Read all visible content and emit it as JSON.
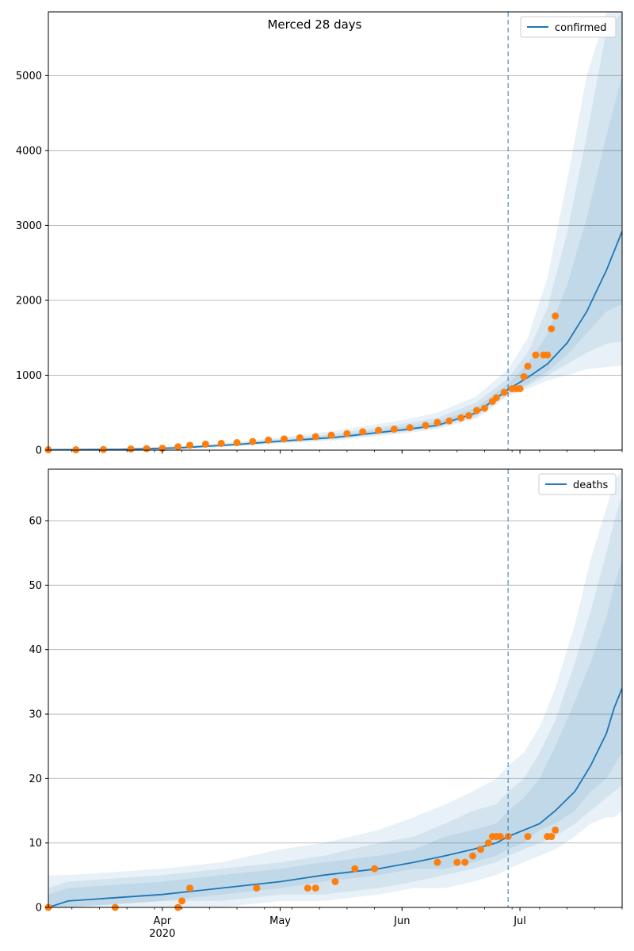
{
  "title": "Merced 28 days",
  "colors": {
    "model": "#1f77b4",
    "observed": "#ff7f0e",
    "band": "#1f77b4",
    "grid": "#b0b0b0",
    "forecast_line": "#1f77b4"
  },
  "x_axis": {
    "ticks": [
      {
        "date": "2020-04-01",
        "label": "Apr",
        "sublabel": "2020"
      },
      {
        "date": "2020-05-01",
        "label": "May",
        "sublabel": ""
      },
      {
        "date": "2020-06-01",
        "label": "Jun",
        "sublabel": ""
      },
      {
        "date": "2020-07-01",
        "label": "Jul",
        "sublabel": ""
      }
    ],
    "range": [
      "2020-03-03",
      "2020-07-27"
    ],
    "minor_ticks": "weekly"
  },
  "chart_data": [
    {
      "type": "line",
      "legend": "confirmed",
      "legend_position": "top-right",
      "grid": "horizontal",
      "ylim": [
        0,
        5850
      ],
      "yticks": [
        0,
        1000,
        2000,
        3000,
        4000,
        5000
      ],
      "forecast_start": "2020-06-28",
      "observed": {
        "x": [
          "2020-03-03",
          "2020-03-10",
          "2020-03-17",
          "2020-03-24",
          "2020-03-28",
          "2020-04-01",
          "2020-04-05",
          "2020-04-08",
          "2020-04-12",
          "2020-04-16",
          "2020-04-20",
          "2020-04-24",
          "2020-04-28",
          "2020-05-02",
          "2020-05-06",
          "2020-05-10",
          "2020-05-14",
          "2020-05-18",
          "2020-05-22",
          "2020-05-26",
          "2020-05-30",
          "2020-06-03",
          "2020-06-07",
          "2020-06-10",
          "2020-06-13",
          "2020-06-16",
          "2020-06-18",
          "2020-06-20",
          "2020-06-22",
          "2020-06-24",
          "2020-06-25",
          "2020-06-27",
          "2020-06-29",
          "2020-06-30",
          "2020-07-01",
          "2020-07-02",
          "2020-07-03",
          "2020-07-05",
          "2020-07-07",
          "2020-07-08",
          "2020-07-09",
          "2020-07-10"
        ],
        "y": [
          5,
          5,
          8,
          15,
          20,
          25,
          45,
          65,
          80,
          90,
          100,
          115,
          135,
          150,
          165,
          180,
          200,
          220,
          245,
          265,
          280,
          300,
          330,
          370,
          390,
          430,
          460,
          530,
          560,
          650,
          700,
          770,
          820,
          820,
          820,
          980,
          1120,
          1270,
          1270,
          1270,
          1620,
          1790
        ]
      },
      "model": {
        "x": [
          "2020-03-03",
          "2020-03-21",
          "2020-04-05",
          "2020-04-20",
          "2020-05-01",
          "2020-05-15",
          "2020-06-01",
          "2020-06-10",
          "2020-06-20",
          "2020-06-28",
          "2020-07-03",
          "2020-07-08",
          "2020-07-13",
          "2020-07-18",
          "2020-07-23",
          "2020-07-27"
        ],
        "y": [
          5,
          10,
          30,
          75,
          120,
          170,
          270,
          330,
          500,
          810,
          970,
          1150,
          1430,
          1850,
          2400,
          2920
        ]
      },
      "bands": [
        {
          "lower": [
            0,
            2,
            15,
            50,
            90,
            130,
            220,
            280,
            420,
            720,
            820,
            930,
            1000,
            1080,
            1110,
            1130
          ],
          "upper": [
            15,
            25,
            55,
            110,
            170,
            260,
            400,
            500,
            720,
            1080,
            1500,
            2300,
            3600,
            5000,
            5850,
            5850
          ]
        },
        {
          "lower": [
            1,
            5,
            20,
            60,
            100,
            145,
            240,
            300,
            450,
            750,
            860,
            1000,
            1150,
            1300,
            1420,
            1450
          ],
          "upper": [
            10,
            20,
            45,
            95,
            150,
            220,
            350,
            430,
            640,
            960,
            1300,
            1900,
            2900,
            4200,
            5600,
            5850
          ]
        },
        {
          "lower": [
            3,
            7,
            24,
            66,
            108,
            155,
            252,
            312,
            472,
            775,
            890,
            1050,
            1270,
            1560,
            1850,
            1950
          ],
          "upper": [
            8,
            15,
            38,
            86,
            135,
            195,
            310,
            380,
            570,
            890,
            1150,
            1550,
            2200,
            3100,
            4200,
            5000
          ]
        }
      ]
    },
    {
      "type": "line",
      "legend": "deaths",
      "legend_position": "top-right",
      "grid": "horizontal",
      "ylim": [
        0,
        68
      ],
      "yticks": [
        0,
        10,
        20,
        30,
        40,
        50,
        60
      ],
      "forecast_start": "2020-06-28",
      "observed": {
        "x": [
          "2020-03-03",
          "2020-03-20",
          "2020-04-05",
          "2020-04-06",
          "2020-04-08",
          "2020-04-25",
          "2020-05-08",
          "2020-05-10",
          "2020-05-15",
          "2020-05-20",
          "2020-05-25",
          "2020-06-10",
          "2020-06-15",
          "2020-06-17",
          "2020-06-19",
          "2020-06-21",
          "2020-06-23",
          "2020-06-24",
          "2020-06-25",
          "2020-06-26",
          "2020-06-28",
          "2020-07-03",
          "2020-07-08",
          "2020-07-09",
          "2020-07-10"
        ],
        "y": [
          0,
          0,
          0,
          1,
          3,
          3,
          3,
          3,
          4,
          6,
          6,
          7,
          7,
          7,
          8,
          9,
          10,
          11,
          11,
          11,
          11,
          11,
          11,
          11,
          12
        ]
      },
      "model": {
        "x": [
          "2020-03-03",
          "2020-03-08",
          "2020-04-01",
          "2020-04-16",
          "2020-05-01",
          "2020-05-12",
          "2020-05-26",
          "2020-06-04",
          "2020-06-12",
          "2020-06-19",
          "2020-06-25",
          "2020-06-28",
          "2020-07-02",
          "2020-07-06",
          "2020-07-10",
          "2020-07-15",
          "2020-07-19",
          "2020-07-23",
          "2020-07-25",
          "2020-07-27"
        ],
        "y": [
          0,
          1,
          2,
          3,
          4,
          5,
          6,
          7,
          8,
          9,
          10,
          11,
          12,
          13,
          15,
          18,
          22,
          27,
          31,
          34
        ]
      },
      "bands": [
        {
          "lower": [
            0,
            0,
            0,
            0,
            1,
            1,
            2,
            3,
            3,
            4,
            5,
            6,
            7,
            8,
            9,
            11,
            13,
            14,
            14,
            15
          ],
          "upper": [
            5,
            5,
            6,
            7,
            9,
            10,
            12,
            14,
            16,
            18,
            20,
            22,
            24,
            28,
            34,
            44,
            54,
            62,
            66,
            68
          ]
        },
        {
          "lower": [
            0,
            0,
            1,
            1,
            2,
            2,
            3,
            4,
            5,
            6,
            7,
            8,
            9,
            10,
            11,
            13,
            15,
            17,
            18,
            19
          ],
          "upper": [
            3,
            4,
            5,
            6,
            7,
            8,
            10,
            11,
            13,
            15,
            16,
            18,
            20,
            24,
            29,
            38,
            46,
            55,
            60,
            64
          ]
        },
        {
          "lower": [
            0,
            0,
            1,
            2,
            3,
            4,
            5,
            6,
            6,
            7,
            8,
            9,
            10,
            12,
            13,
            15,
            18,
            20,
            22,
            24
          ],
          "upper": [
            2,
            3,
            4,
            5,
            6,
            7,
            8,
            9,
            11,
            12,
            13,
            15,
            17,
            20,
            25,
            32,
            38,
            45,
            50,
            54
          ]
        }
      ]
    }
  ]
}
